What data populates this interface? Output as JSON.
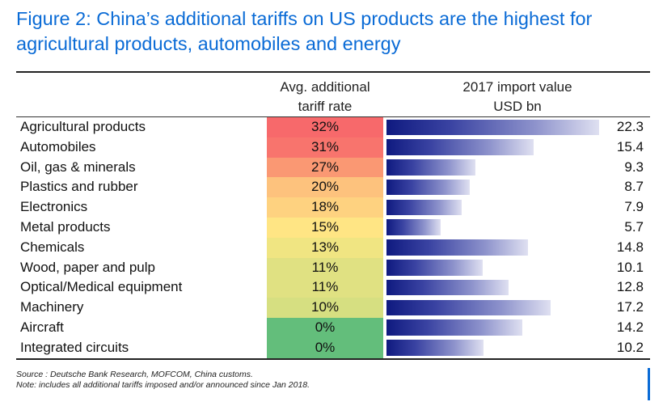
{
  "title": {
    "line1": "Figure 2: China’s additional tariffs on US products are the highest for",
    "line2": "agricultural products, automobiles and energy"
  },
  "headers": {
    "rate_line1": "Avg. additional",
    "rate_line2": "tariff rate",
    "value_line1": "2017 import value",
    "value_line2": "USD bn"
  },
  "notes": {
    "source": "Source : Deutsche Bank Research, MOFCOM, China customs.",
    "note": "Note: includes all additional tariffs imposed and/or announced since Jan 2018."
  },
  "colors": {
    "title": "#0a6bd6",
    "bar_dark": "#0f1a80",
    "bar_light": "#dfe0f1"
  },
  "chart_data": {
    "type": "table",
    "title": "Figure 2: China’s additional tariffs on US products are the highest for agricultural products, automobiles and energy",
    "columns": [
      "Avg. additional tariff rate",
      "2017 import value USD bn"
    ],
    "value_max": 22.3,
    "rows": [
      {
        "category": "Agricultural products",
        "rate_label": "32%",
        "rate": 32,
        "value_label": "22.3",
        "value": 22.3,
        "rate_color": "#f7696b"
      },
      {
        "category": "Automobiles",
        "rate_label": "31%",
        "rate": 31,
        "value_label": "15.4",
        "value": 15.4,
        "rate_color": "#f8746d"
      },
      {
        "category": "Oil, gas & minerals",
        "rate_label": "27%",
        "rate": 27,
        "value_label": "9.3",
        "value": 9.3,
        "rate_color": "#fa9873"
      },
      {
        "category": "Plastics and rubber",
        "rate_label": "20%",
        "rate": 20,
        "value_label": "8.7",
        "value": 8.7,
        "rate_color": "#fdc27d"
      },
      {
        "category": "Electronics",
        "rate_label": "18%",
        "rate": 18,
        "value_label": "7.9",
        "value": 7.9,
        "rate_color": "#fed280"
      },
      {
        "category": "Metal products",
        "rate_label": "15%",
        "rate": 15,
        "value_label": "5.7",
        "value": 5.7,
        "rate_color": "#ffe584"
      },
      {
        "category": "Chemicals",
        "rate_label": "13%",
        "rate": 13,
        "value_label": "14.8",
        "value": 14.8,
        "rate_color": "#f0e582"
      },
      {
        "category": "Wood, paper and pulp",
        "rate_label": "11%",
        "rate": 11,
        "value_label": "10.1",
        "value": 10.1,
        "rate_color": "#e0e182"
      },
      {
        "category": "Optical/Medical equipment",
        "rate_label": "11%",
        "rate": 11,
        "value_label": "12.8",
        "value": 12.8,
        "rate_color": "#e0e182"
      },
      {
        "category": "Machinery",
        "rate_label": "10%",
        "rate": 10,
        "value_label": "17.2",
        "value": 17.2,
        "rate_color": "#d6df81"
      },
      {
        "category": "Aircraft",
        "rate_label": "0%",
        "rate": 0,
        "value_label": "14.2",
        "value": 14.2,
        "rate_color": "#63be7b"
      },
      {
        "category": "Integrated circuits",
        "rate_label": "0%",
        "rate": 0,
        "value_label": "10.2",
        "value": 10.2,
        "rate_color": "#63be7b"
      }
    ]
  }
}
